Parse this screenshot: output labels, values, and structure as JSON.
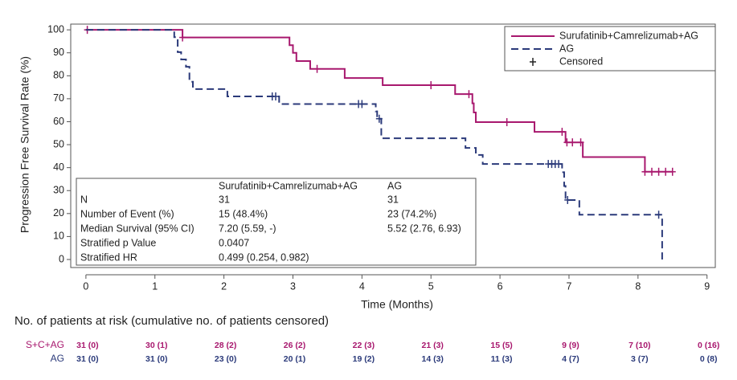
{
  "chart_data": {
    "type": "km-step",
    "x_label": "Time (Months)",
    "y_label": "Progression Free Survival Rate (%)",
    "xlim": [
      -0.22,
      9.12
    ],
    "xticks": [
      0,
      1,
      2,
      3,
      4,
      5,
      6,
      7,
      8,
      9
    ],
    "ylim": [
      -3.5,
      102.5
    ],
    "yticks": [
      0,
      10,
      20,
      30,
      40,
      50,
      60,
      70,
      80,
      90,
      100
    ],
    "legend": "top-right",
    "censored_label": "Censored",
    "series": [
      {
        "name": "Surufatinib+Camrelizumab+AG",
        "color": "#a8186e",
        "dashed": false,
        "x": [
          0,
          1.4,
          2.95,
          3.0,
          3.05,
          3.25,
          3.75,
          4.3,
          5.35,
          5.6,
          5.62,
          5.65,
          6.5,
          6.95,
          7.2,
          8.1,
          8.5
        ],
        "values": [
          100,
          96.7,
          93.3,
          90.0,
          86.4,
          83.0,
          79.0,
          75.9,
          72.0,
          68.0,
          64.0,
          59.8,
          55.6,
          51.0,
          44.6,
          38.2,
          38.2
        ],
        "censor_x": [
          0.02,
          1.4,
          3.35,
          5.0,
          5.55,
          6.1,
          6.9,
          6.97,
          7.05,
          7.17,
          8.1,
          8.2,
          8.3,
          8.4,
          8.5
        ],
        "censor_values": [
          100,
          96.7,
          83.0,
          75.9,
          72.0,
          59.8,
          55.6,
          51.0,
          51.0,
          51.0,
          38.2,
          38.2,
          38.2,
          38.2,
          38.2
        ]
      },
      {
        "name": "AG",
        "color": "#2b3a7a",
        "dashed": true,
        "x": [
          0,
          1.28,
          1.33,
          1.38,
          1.45,
          1.5,
          1.55,
          2.05,
          2.8,
          4.2,
          4.22,
          4.28,
          5.5,
          5.65,
          5.75,
          6.9,
          6.93,
          6.95,
          7.15,
          8.35
        ],
        "values": [
          100,
          96.8,
          90.3,
          87.1,
          83.9,
          77.4,
          74.2,
          71.0,
          67.7,
          64.5,
          61.3,
          52.8,
          48.6,
          45.5,
          41.6,
          38.0,
          32.0,
          25.9,
          19.5,
          0
        ],
        "censor_x": [
          2.7,
          2.75,
          3.95,
          4.0,
          4.25,
          6.7,
          6.75,
          6.8,
          6.85,
          6.98,
          8.3
        ],
        "censor_values": [
          71.0,
          71.0,
          67.7,
          67.7,
          61.3,
          41.6,
          41.6,
          41.6,
          41.6,
          25.9,
          19.5
        ]
      }
    ]
  },
  "stats_table": {
    "header": [
      "Surufatinib+Camrelizumab+AG",
      "AG"
    ],
    "rows": [
      [
        "N",
        "31",
        "31"
      ],
      [
        "Number of Event (%)",
        "15 (48.4%)",
        "23 (74.2%)"
      ],
      [
        "Median Survival (95% CI)",
        "7.20 (5.59, -)",
        "5.52 (2.76, 6.93)"
      ],
      [
        "Stratified p Value",
        "0.0407"
      ],
      [
        "Stratified HR",
        "0.499 (0.254, 0.982)"
      ]
    ]
  },
  "risk_table": {
    "title": "No. of patients at risk (cumulative no. of patients censored)",
    "rows": [
      {
        "label": "S+C+AG",
        "color": "#a8186e",
        "values": [
          "31 (0)",
          "30 (1)",
          "28 (2)",
          "26 (2)",
          "22 (3)",
          "21 (3)",
          "15 (5)",
          "9 (9)",
          "7 (10)",
          "0 (16)"
        ]
      },
      {
        "label": "AG",
        "color": "#2b3a7a",
        "values": [
          "31 (0)",
          "31 (0)",
          "23 (0)",
          "20 (1)",
          "19 (2)",
          "14 (3)",
          "11 (3)",
          "4 (7)",
          "3 (7)",
          "0 (8)"
        ]
      }
    ]
  }
}
